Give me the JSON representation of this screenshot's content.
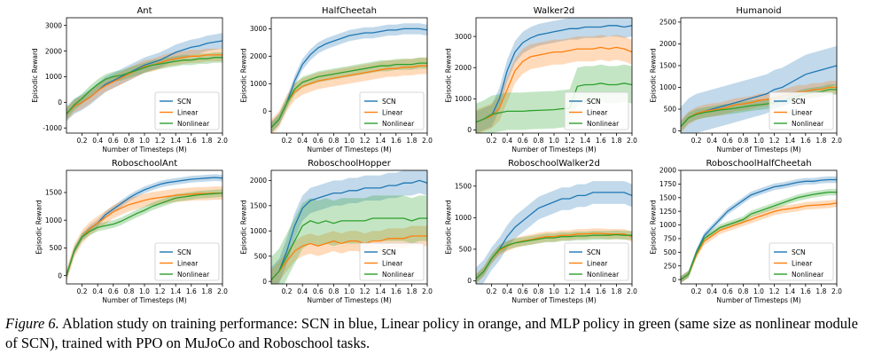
{
  "caption": {
    "label": "Figure 6.",
    "text": " Ablation study on training performance: SCN in blue, Linear policy in orange, and MLP policy in green (same size as nonlinear module of SCN), trained with PPO on MuJoCo and Roboschool tasks."
  },
  "colors": {
    "SCN": "#1f77b4",
    "Linear": "#ff7f0e",
    "Nonlinear": "#2ca02c",
    "axis": "#000000"
  },
  "chart_data": [
    {
      "type": "line",
      "title": "Ant",
      "xlabel": "Number of Timesteps (M)",
      "ylabel": "Episodic Reward",
      "xlim": [
        0,
        2.0
      ],
      "ylim": [
        -1200,
        3300
      ],
      "xticks": [
        "0.2",
        "0.4",
        "0.6",
        "0.8",
        "1.0",
        "1.2",
        "1.4",
        "1.6",
        "1.8",
        "2.0"
      ],
      "yticks": [
        -1000,
        0,
        1000,
        2000,
        3000
      ],
      "legend": "lower-right",
      "x": [
        0,
        0.1,
        0.2,
        0.3,
        0.4,
        0.5,
        0.6,
        0.7,
        0.8,
        0.9,
        1.0,
        1.1,
        1.2,
        1.3,
        1.4,
        1.5,
        1.6,
        1.7,
        1.8,
        1.9,
        2.0
      ],
      "series": [
        {
          "name": "SCN",
          "values": [
            -450,
            -150,
            0,
            200,
            450,
            700,
            850,
            1000,
            1150,
            1300,
            1450,
            1550,
            1650,
            1800,
            1950,
            2050,
            2150,
            2200,
            2300,
            2350,
            2400
          ],
          "band": 300
        },
        {
          "name": "Linear",
          "values": [
            -450,
            -150,
            0,
            200,
            450,
            650,
            800,
            950,
            1100,
            1250,
            1400,
            1450,
            1550,
            1650,
            1700,
            1750,
            1800,
            1800,
            1850,
            1850,
            1850
          ],
          "band": 250
        },
        {
          "name": "Nonlinear",
          "values": [
            -450,
            -100,
            150,
            450,
            700,
            900,
            1000,
            1050,
            1150,
            1250,
            1350,
            1450,
            1500,
            1550,
            1600,
            1650,
            1650,
            1700,
            1700,
            1750,
            1750
          ],
          "band": 200
        }
      ]
    },
    {
      "type": "line",
      "title": "HalfCheetah",
      "xlabel": "Number of Timesteps (M)",
      "ylabel": "Episodic Reward",
      "xlim": [
        0,
        2.0
      ],
      "ylim": [
        -800,
        3400
      ],
      "xticks": [
        "0.2",
        "0.4",
        "0.6",
        "0.8",
        "1.0",
        "1.2",
        "1.4",
        "1.6",
        "1.8",
        "2.0"
      ],
      "yticks": [
        0,
        1000,
        2000,
        3000
      ],
      "legend": "lower-right",
      "x": [
        0,
        0.1,
        0.2,
        0.3,
        0.4,
        0.5,
        0.6,
        0.7,
        0.8,
        0.9,
        1.0,
        1.1,
        1.2,
        1.3,
        1.4,
        1.5,
        1.6,
        1.7,
        1.8,
        1.9,
        2.0
      ],
      "series": [
        {
          "name": "SCN",
          "values": [
            -600,
            -300,
            300,
            1100,
            1700,
            2050,
            2300,
            2450,
            2550,
            2650,
            2750,
            2800,
            2850,
            2850,
            2900,
            2950,
            2950,
            3000,
            3000,
            3000,
            2950
          ],
          "band": 200
        },
        {
          "name": "Linear",
          "values": [
            -600,
            -300,
            300,
            700,
            900,
            1000,
            1100,
            1150,
            1200,
            1250,
            1300,
            1350,
            1400,
            1450,
            1500,
            1550,
            1550,
            1600,
            1600,
            1650,
            1650
          ],
          "band": 300
        },
        {
          "name": "Nonlinear",
          "values": [
            -600,
            -300,
            300,
            800,
            1050,
            1150,
            1250,
            1300,
            1350,
            1400,
            1450,
            1500,
            1550,
            1600,
            1650,
            1650,
            1700,
            1700,
            1700,
            1750,
            1750
          ],
          "band": 200
        }
      ]
    },
    {
      "type": "line",
      "title": "Walker2d",
      "xlabel": "Number of Timesteps (M)",
      "ylabel": "Episodic Reward",
      "xlim": [
        0,
        2.0
      ],
      "ylim": [
        -100,
        3600
      ],
      "xticks": [
        "0.2",
        "0.4",
        "0.6",
        "0.8",
        "1.0",
        "1.2",
        "1.4",
        "1.6",
        "1.8",
        "2.0"
      ],
      "yticks": [
        0,
        1000,
        2000,
        3000
      ],
      "legend": "lower-right",
      "x": [
        0,
        0.1,
        0.2,
        0.3,
        0.4,
        0.5,
        0.6,
        0.7,
        0.8,
        0.9,
        1.0,
        1.1,
        1.2,
        1.3,
        1.4,
        1.5,
        1.6,
        1.7,
        1.8,
        1.9,
        2.0
      ],
      "series": [
        {
          "name": "SCN",
          "values": [
            250,
            350,
            450,
            1000,
            1900,
            2500,
            2800,
            2950,
            3050,
            3100,
            3150,
            3200,
            3250,
            3250,
            3300,
            3300,
            3300,
            3350,
            3350,
            3300,
            3350
          ],
          "band": 350
        },
        {
          "name": "Linear",
          "values": [
            250,
            350,
            450,
            700,
            1300,
            1900,
            2200,
            2350,
            2400,
            2450,
            2500,
            2500,
            2550,
            2600,
            2600,
            2600,
            2650,
            2600,
            2650,
            2600,
            2500
          ],
          "band": 400
        },
        {
          "name": "Nonlinear",
          "values": [
            250,
            350,
            500,
            550,
            600,
            600,
            600,
            620,
            630,
            640,
            650,
            680,
            700,
            1400,
            1450,
            1450,
            1500,
            1450,
            1450,
            1500,
            1450
          ],
          "band": 600
        }
      ]
    },
    {
      "type": "line",
      "title": "Humanoid",
      "xlabel": "Number of Timesteps (M)",
      "ylabel": "Episodic Reward",
      "xlim": [
        0,
        2.0
      ],
      "ylim": [
        -50,
        2600
      ],
      "xticks": [
        "0.2",
        "0.4",
        "0.6",
        "0.8",
        "1.0",
        "1.2",
        "1.4",
        "1.6",
        "1.8",
        "2.0"
      ],
      "yticks": [
        0,
        500,
        1000,
        1500,
        2000,
        2500
      ],
      "legend": "lower-right",
      "x": [
        0,
        0.1,
        0.2,
        0.3,
        0.4,
        0.5,
        0.6,
        0.7,
        0.8,
        0.9,
        1.0,
        1.1,
        1.2,
        1.3,
        1.4,
        1.5,
        1.6,
        1.7,
        1.8,
        1.9,
        2.0
      ],
      "series": [
        {
          "name": "SCN",
          "values": [
            100,
            300,
            400,
            450,
            500,
            550,
            600,
            650,
            700,
            750,
            800,
            850,
            950,
            1000,
            1100,
            1200,
            1300,
            1350,
            1400,
            1450,
            1500
          ],
          "band": 450
        },
        {
          "name": "Linear",
          "values": [
            100,
            300,
            400,
            450,
            480,
            500,
            550,
            600,
            620,
            650,
            700,
            720,
            750,
            800,
            850,
            900,
            900,
            950,
            950,
            1000,
            1000
          ],
          "band": 150
        },
        {
          "name": "Nonlinear",
          "values": [
            100,
            300,
            380,
            420,
            450,
            480,
            500,
            520,
            550,
            580,
            600,
            620,
            650,
            700,
            750,
            800,
            850,
            880,
            900,
            950,
            950
          ],
          "band": 120
        }
      ]
    },
    {
      "type": "line",
      "title": "RoboschoolAnt",
      "xlabel": "Number of Timesteps (M)",
      "ylabel": "Episodic Reward",
      "xlim": [
        0,
        2.0
      ],
      "ylim": [
        -150,
        1900
      ],
      "xticks": [
        "0.2",
        "0.4",
        "0.6",
        "0.8",
        "1.0",
        "1.2",
        "1.4",
        "1.6",
        "1.8",
        "2.0"
      ],
      "yticks": [
        0,
        500,
        1000,
        1500
      ],
      "legend": "lower-right",
      "x": [
        0,
        0.1,
        0.2,
        0.3,
        0.4,
        0.5,
        0.6,
        0.7,
        0.8,
        0.9,
        1.0,
        1.1,
        1.2,
        1.3,
        1.4,
        1.5,
        1.6,
        1.7,
        1.8,
        1.9,
        2.0
      ],
      "series": [
        {
          "name": "SCN",
          "values": [
            0,
            450,
            700,
            850,
            950,
            1100,
            1200,
            1300,
            1400,
            1480,
            1550,
            1600,
            1650,
            1680,
            1700,
            1720,
            1740,
            1750,
            1760,
            1770,
            1760
          ],
          "band": 60
        },
        {
          "name": "Linear",
          "values": [
            0,
            450,
            700,
            850,
            950,
            1050,
            1150,
            1220,
            1280,
            1320,
            1360,
            1390,
            1410,
            1430,
            1450,
            1460,
            1470,
            1480,
            1480,
            1490,
            1490
          ],
          "band": 120
        },
        {
          "name": "Nonlinear",
          "values": [
            0,
            450,
            700,
            800,
            870,
            900,
            930,
            980,
            1050,
            1120,
            1180,
            1250,
            1300,
            1350,
            1400,
            1420,
            1440,
            1460,
            1470,
            1480,
            1490
          ],
          "band": 70
        }
      ]
    },
    {
      "type": "line",
      "title": "RoboschoolHopper",
      "xlabel": "Number of Timesteps (M)",
      "ylabel": "Episodic Reward",
      "xlim": [
        0,
        2.0
      ],
      "ylim": [
        -50,
        2200
      ],
      "xticks": [
        "0.2",
        "0.4",
        "0.6",
        "0.8",
        "1.0",
        "1.2",
        "1.4",
        "1.6",
        "1.8",
        "2.0"
      ],
      "yticks": [
        0,
        500,
        1000,
        1500,
        2000
      ],
      "legend": "lower-right",
      "x": [
        0,
        0.1,
        0.2,
        0.3,
        0.4,
        0.5,
        0.6,
        0.7,
        0.8,
        0.9,
        1.0,
        1.1,
        1.2,
        1.3,
        1.4,
        1.5,
        1.6,
        1.7,
        1.8,
        1.9,
        2.0
      ],
      "series": [
        {
          "name": "SCN",
          "values": [
            30,
            200,
            600,
            1100,
            1450,
            1600,
            1650,
            1700,
            1750,
            1750,
            1800,
            1800,
            1850,
            1850,
            1850,
            1900,
            1900,
            1950,
            1950,
            2000,
            1950
          ],
          "band": 250
        },
        {
          "name": "Linear",
          "values": [
            30,
            200,
            400,
            600,
            700,
            750,
            700,
            750,
            800,
            750,
            800,
            800,
            750,
            800,
            800,
            850,
            850,
            850,
            900,
            900,
            900
          ],
          "band": 200
        },
        {
          "name": "Nonlinear",
          "values": [
            30,
            200,
            500,
            800,
            1100,
            1200,
            1150,
            1200,
            1150,
            1200,
            1200,
            1200,
            1200,
            1250,
            1250,
            1250,
            1250,
            1250,
            1200,
            1250,
            1250
          ],
          "band": 450
        }
      ]
    },
    {
      "type": "line",
      "title": "RoboschoolWalker2d",
      "xlabel": "Number of Timesteps (M)",
      "ylabel": "Episodic Reward",
      "xlim": [
        0,
        2.0
      ],
      "ylim": [
        -50,
        1750
      ],
      "xticks": [
        "0.2",
        "0.4",
        "0.6",
        "0.8",
        "1.0",
        "1.2",
        "1.4",
        "1.6",
        "1.8",
        "2.0"
      ],
      "yticks": [
        0,
        500,
        1000,
        1500
      ],
      "legend": "lower-right",
      "x": [
        0,
        0.1,
        0.2,
        0.3,
        0.4,
        0.5,
        0.6,
        0.7,
        0.8,
        0.9,
        1.0,
        1.1,
        1.2,
        1.3,
        1.4,
        1.5,
        1.6,
        1.7,
        1.8,
        1.9,
        2.0
      ],
      "series": [
        {
          "name": "SCN",
          "values": [
            30,
            150,
            350,
            500,
            700,
            850,
            950,
            1050,
            1150,
            1200,
            1250,
            1300,
            1300,
            1350,
            1350,
            1400,
            1400,
            1400,
            1400,
            1400,
            1350
          ],
          "band": 180
        },
        {
          "name": "Linear",
          "values": [
            30,
            150,
            350,
            480,
            550,
            600,
            630,
            650,
            680,
            700,
            700,
            720,
            720,
            740,
            740,
            750,
            750,
            740,
            740,
            740,
            700
          ],
          "band": 80
        },
        {
          "name": "Nonlinear",
          "values": [
            30,
            150,
            350,
            500,
            560,
            600,
            620,
            640,
            660,
            680,
            680,
            700,
            700,
            710,
            710,
            720,
            720,
            720,
            730,
            720,
            720
          ],
          "band": 70
        }
      ]
    },
    {
      "type": "line",
      "title": "RoboschoolHalfCheetah",
      "xlabel": "Number of Timesteps (M)",
      "ylabel": "Episodic Reward",
      "xlim": [
        0,
        2.0
      ],
      "ylim": [
        -80,
        2000
      ],
      "xticks": [
        "0.2",
        "0.4",
        "0.6",
        "0.8",
        "1.0",
        "1.2",
        "1.4",
        "1.6",
        "1.8",
        "2.0"
      ],
      "yticks": [
        0,
        250,
        500,
        750,
        1000,
        1250,
        1500,
        1750,
        2000
      ],
      "legend": "lower-right",
      "x": [
        0,
        0.1,
        0.2,
        0.3,
        0.4,
        0.5,
        0.6,
        0.7,
        0.8,
        0.9,
        1.0,
        1.1,
        1.2,
        1.3,
        1.4,
        1.5,
        1.6,
        1.7,
        1.8,
        1.9,
        2.0
      ],
      "series": [
        {
          "name": "SCN",
          "values": [
            0,
            100,
            500,
            800,
            950,
            1100,
            1250,
            1350,
            1450,
            1550,
            1600,
            1650,
            1700,
            1720,
            1750,
            1780,
            1800,
            1800,
            1820,
            1830,
            1830
          ],
          "band": 60
        },
        {
          "name": "Linear",
          "values": [
            0,
            100,
            450,
            700,
            800,
            900,
            950,
            1000,
            1050,
            1100,
            1150,
            1200,
            1250,
            1280,
            1300,
            1320,
            1350,
            1360,
            1370,
            1380,
            1400
          ],
          "band": 70
        },
        {
          "name": "Nonlinear",
          "values": [
            0,
            100,
            480,
            750,
            850,
            950,
            1000,
            1050,
            1100,
            1200,
            1250,
            1300,
            1350,
            1400,
            1450,
            1500,
            1530,
            1560,
            1580,
            1600,
            1600
          ],
          "band": 60
        }
      ]
    }
  ]
}
